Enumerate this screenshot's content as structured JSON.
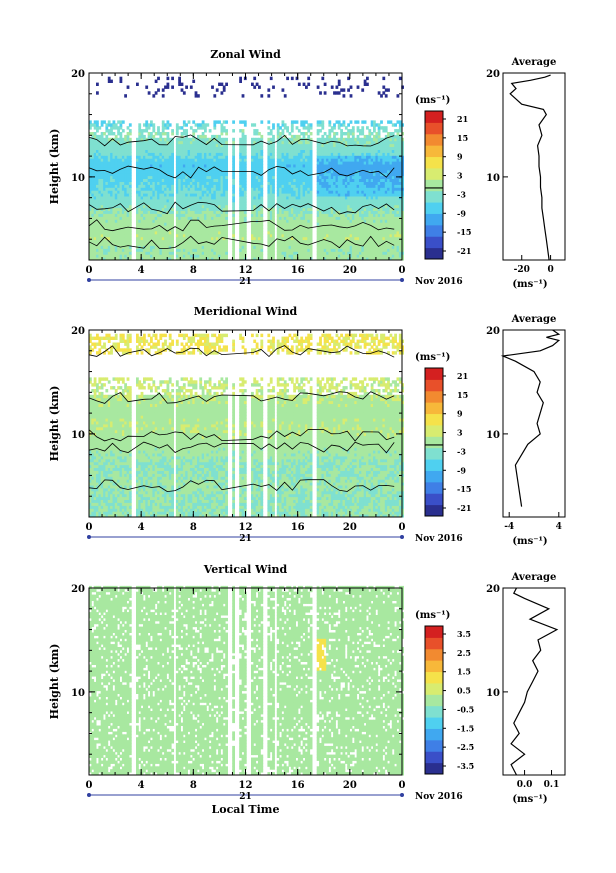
{
  "colors": {
    "scale": [
      "#2a2f8f",
      "#3a4fc8",
      "#3f7fe6",
      "#40a8f0",
      "#4fd0f0",
      "#7fe0d0",
      "#a8e8a0",
      "#d8ec70",
      "#f5e24a",
      "#f7b83a",
      "#f28a30",
      "#e8502a",
      "#d42020"
    ],
    "contour": "#000000",
    "axis": "#000000",
    "time_axis_accent": "#3040a0"
  },
  "chart_data": [
    {
      "type": "heatmap",
      "title": "Zonal Wind",
      "ylabel": "Height (km)",
      "xlabel": "",
      "unit_label": "(ms⁻¹)",
      "ylim": [
        2,
        20
      ],
      "y_ticks": [
        10,
        20
      ],
      "xlim": [
        0,
        24
      ],
      "x_tick_labels": [
        "0",
        "4",
        "8",
        "12",
        "16",
        "20",
        "0"
      ],
      "date_mark": "21",
      "date_label": "Nov 2016",
      "colorbar_ticks": [
        "21",
        "15",
        "9",
        "3",
        "-3",
        "-9",
        "-15",
        "-21"
      ],
      "colorbar_range": [
        -24,
        24
      ],
      "gap_hours": [
        [
          3.2,
          3.6
        ],
        [
          6.3,
          6.5
        ],
        [
          10.5,
          10.9
        ],
        [
          11.1,
          11.5
        ],
        [
          11.9,
          12.3
        ],
        [
          13.3,
          13.5
        ],
        [
          14.1,
          14.3
        ],
        [
          17.0,
          17.4
        ]
      ],
      "rows_km": [
        {
          "h": 3.0,
          "v": -1
        },
        {
          "h": 4.0,
          "v": 1
        },
        {
          "h": 5.0,
          "v": 0
        },
        {
          "h": 6.0,
          "v": -1
        },
        {
          "h": 7.0,
          "v": -3
        },
        {
          "h": 8.0,
          "v": -5
        },
        {
          "h": 9.0,
          "v": -6
        },
        {
          "h": 10.0,
          "v": -7
        },
        {
          "h": 11.0,
          "v": -8
        },
        {
          "h": 12.0,
          "v": -5
        },
        {
          "h": 13.0,
          "v": -3
        },
        {
          "h": 14.0,
          "v": -2
        },
        {
          "h": 18.5,
          "v": -20
        }
      ],
      "profile": {
        "title": "Average",
        "xlim": [
          -33,
          10
        ],
        "x_ticks": [
          "-20",
          "0"
        ],
        "x_tick_values": [
          -20,
          0
        ],
        "unit_label": "(ms⁻¹)",
        "y_ticks": [
          10,
          20
        ],
        "points": [
          [
            -1,
            2
          ],
          [
            -2,
            3
          ],
          [
            -3,
            4
          ],
          [
            -4,
            5
          ],
          [
            -5,
            6
          ],
          [
            -6,
            7
          ],
          [
            -6,
            8
          ],
          [
            -7,
            9
          ],
          [
            -7,
            10
          ],
          [
            -8,
            11
          ],
          [
            -8,
            12
          ],
          [
            -9,
            13
          ],
          [
            -6,
            14
          ],
          [
            -8,
            15
          ],
          [
            -3,
            16
          ],
          [
            -5,
            16.5
          ],
          [
            -20,
            17
          ],
          [
            -28,
            18
          ],
          [
            -24,
            18.5
          ],
          [
            -27,
            19
          ],
          [
            -14,
            19.3
          ],
          [
            -4,
            19.6
          ],
          [
            0,
            19.8
          ]
        ]
      }
    },
    {
      "type": "heatmap",
      "title": "Meridional Wind",
      "ylabel": "Height (km)",
      "xlabel": "",
      "unit_label": "(ms⁻¹)",
      "ylim": [
        2,
        20
      ],
      "y_ticks": [
        10,
        20
      ],
      "xlim": [
        0,
        24
      ],
      "x_tick_labels": [
        "0",
        "4",
        "8",
        "12",
        "16",
        "20",
        "0"
      ],
      "date_mark": "21",
      "date_label": "Nov 2016",
      "colorbar_ticks": [
        "21",
        "15",
        "9",
        "3",
        "-3",
        "-9",
        "-15",
        "-21"
      ],
      "colorbar_range": [
        -24,
        24
      ],
      "gap_hours": [
        [
          3.2,
          3.6
        ],
        [
          6.3,
          6.5
        ],
        [
          10.5,
          10.9
        ],
        [
          11.1,
          11.5
        ],
        [
          11.9,
          12.3
        ],
        [
          13.3,
          13.5
        ],
        [
          14.1,
          14.3
        ],
        [
          17.0,
          17.4
        ]
      ],
      "rows_km": [
        {
          "h": 3.0,
          "v": -2
        },
        {
          "h": 4.0,
          "v": -2
        },
        {
          "h": 5.0,
          "v": -1
        },
        {
          "h": 6.0,
          "v": -2
        },
        {
          "h": 7.0,
          "v": -2
        },
        {
          "h": 8.0,
          "v": -1
        },
        {
          "h": 9.0,
          "v": 0
        },
        {
          "h": 10.0,
          "v": 1
        },
        {
          "h": 11.0,
          "v": 1
        },
        {
          "h": 12.0,
          "v": 0
        },
        {
          "h": 13.0,
          "v": 1
        },
        {
          "h": 14.0,
          "v": 2
        },
        {
          "h": 18.5,
          "v": 4
        }
      ],
      "profile": {
        "title": "Average",
        "xlim": [
          -5,
          5
        ],
        "x_ticks": [
          "-4",
          "4"
        ],
        "x_tick_values": [
          -4,
          4
        ],
        "unit_label": "(ms⁻¹)",
        "y_ticks": [
          10,
          20
        ],
        "points": [
          [
            -2,
            3
          ],
          [
            -2.5,
            5
          ],
          [
            -3,
            7
          ],
          [
            -2,
            8
          ],
          [
            -1,
            9
          ],
          [
            1,
            10
          ],
          [
            0.5,
            11
          ],
          [
            1,
            12
          ],
          [
            1.5,
            13
          ],
          [
            0.5,
            14
          ],
          [
            1,
            15
          ],
          [
            0,
            16
          ],
          [
            -3,
            17
          ],
          [
            -5,
            17.5
          ],
          [
            1,
            18
          ],
          [
            3,
            18.5
          ],
          [
            4,
            19
          ],
          [
            2,
            19.3
          ],
          [
            4,
            19.6
          ],
          [
            3,
            20
          ]
        ]
      }
    },
    {
      "type": "heatmap",
      "title": "Vertical Wind",
      "ylabel": "Height (km)",
      "xlabel": "Local Time",
      "unit_label": "(ms⁻¹)",
      "ylim": [
        2,
        20
      ],
      "y_ticks": [
        10,
        20
      ],
      "xlim": [
        0,
        24
      ],
      "x_tick_labels": [
        "0",
        "4",
        "8",
        "12",
        "16",
        "20",
        "0"
      ],
      "date_mark": "21",
      "date_label": "Nov 2016",
      "colorbar_ticks": [
        "3.5",
        "2.5",
        "1.5",
        "0.5",
        "-0.5",
        "-1.5",
        "-2.5",
        "-3.5"
      ],
      "colorbar_range": [
        -4,
        4
      ],
      "gap_hours": [
        [
          3.2,
          3.6
        ],
        [
          6.3,
          6.5
        ],
        [
          10.5,
          10.9
        ],
        [
          11.1,
          11.5
        ],
        [
          11.9,
          12.3
        ],
        [
          13.3,
          13.5
        ],
        [
          14.1,
          14.3
        ],
        [
          17.0,
          17.4
        ]
      ],
      "rows_km": [
        {
          "h": 3.0,
          "v": 0
        },
        {
          "h": 6.0,
          "v": 0
        },
        {
          "h": 10.0,
          "v": 0
        },
        {
          "h": 14.0,
          "v": 0
        },
        {
          "h": 18.0,
          "v": 0
        }
      ],
      "profile": {
        "title": "Average",
        "xlim": [
          -0.08,
          0.15
        ],
        "x_ticks": [
          "0.0",
          "0.1"
        ],
        "x_tick_values": [
          0,
          0.1
        ],
        "unit_label": "(ms⁻¹)",
        "y_ticks": [
          10,
          20
        ],
        "points": [
          [
            -0.03,
            2
          ],
          [
            -0.05,
            3
          ],
          [
            0.0,
            4
          ],
          [
            -0.05,
            5
          ],
          [
            -0.02,
            6
          ],
          [
            -0.04,
            7
          ],
          [
            -0.02,
            8
          ],
          [
            0.0,
            9
          ],
          [
            0.01,
            10
          ],
          [
            0.03,
            11
          ],
          [
            0.05,
            12
          ],
          [
            0.03,
            13
          ],
          [
            0.06,
            14
          ],
          [
            0.05,
            15
          ],
          [
            0.12,
            16
          ],
          [
            0.02,
            17
          ],
          [
            0.09,
            18
          ],
          [
            0.0,
            19
          ],
          [
            -0.04,
            19.5
          ],
          [
            -0.03,
            20
          ]
        ]
      }
    }
  ]
}
